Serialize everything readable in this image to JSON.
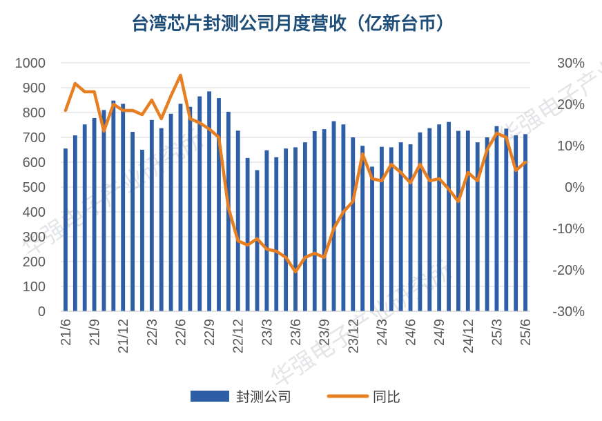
{
  "chart_data": {
    "type": "bar",
    "title": "台湾芯片封测公司月度营收（亿新台币）",
    "categories": [
      "21/6",
      "21/7",
      "21/8",
      "21/9",
      "21/10",
      "21/11",
      "21/12",
      "22/1",
      "22/2",
      "22/3",
      "22/4",
      "22/5",
      "22/6",
      "22/7",
      "22/8",
      "22/9",
      "22/10",
      "22/11",
      "22/12",
      "23/1",
      "23/2",
      "23/3",
      "23/4",
      "23/5",
      "23/6",
      "23/7",
      "23/8",
      "23/9",
      "23/10",
      "23/11",
      "23/12",
      "24/1",
      "24/2",
      "24/3",
      "24/4",
      "24/5",
      "24/6",
      "24/7",
      "24/8",
      "24/9",
      "24/10",
      "24/11",
      "24/12",
      "25/1",
      "25/2",
      "25/3",
      "25/4",
      "25/5",
      "25/6"
    ],
    "x_tick_labels": [
      "21/6",
      "21/9",
      "21/12",
      "22/3",
      "22/6",
      "22/9",
      "22/12",
      "23/3",
      "23/6",
      "23/9",
      "23/12",
      "24/3",
      "24/6",
      "24/9",
      "24/12",
      "25/3",
      "25/6"
    ],
    "series": [
      {
        "name": "封测公司",
        "type": "bar",
        "axis": "left",
        "color": "#2E5EA6",
        "values": [
          655,
          708,
          752,
          778,
          810,
          848,
          835,
          722,
          650,
          770,
          737,
          795,
          835,
          823,
          865,
          885,
          858,
          803,
          727,
          617,
          568,
          648,
          620,
          655,
          660,
          680,
          725,
          733,
          765,
          752,
          700,
          666,
          582,
          662,
          660,
          680,
          672,
          720,
          737,
          752,
          762,
          726,
          727,
          680,
          700,
          745,
          735,
          708,
          713
        ]
      },
      {
        "name": "同比",
        "type": "line",
        "axis": "right",
        "color": "#E67E22",
        "values": [
          18.5,
          25,
          23,
          23,
          13.5,
          20,
          18.5,
          18.5,
          17.5,
          21,
          16.5,
          22,
          27,
          16.5,
          15.5,
          14,
          12,
          -5,
          -13,
          -14,
          -12.5,
          -15,
          -15.5,
          -17,
          -20.5,
          -17,
          -16,
          -17,
          -10,
          -6,
          -3.5,
          8,
          2,
          1.5,
          5.5,
          3.5,
          1,
          5.5,
          1.5,
          2,
          -0.5,
          -3.5,
          3.5,
          1.5,
          9,
          13,
          12,
          4,
          6
        ]
      }
    ],
    "y_left": {
      "min": 0,
      "max": 1000,
      "step": 100,
      "ticks": [
        "0",
        "100",
        "200",
        "300",
        "400",
        "500",
        "600",
        "700",
        "800",
        "900",
        "1000"
      ]
    },
    "y_right": {
      "min": -30,
      "max": 30,
      "step": 10,
      "ticks": [
        "-30%",
        "-20%",
        "-10%",
        "0%",
        "10%",
        "20%",
        "30%"
      ]
    },
    "grid": true,
    "legend_position": "bottom",
    "watermark": "华强电子产业研究所"
  }
}
